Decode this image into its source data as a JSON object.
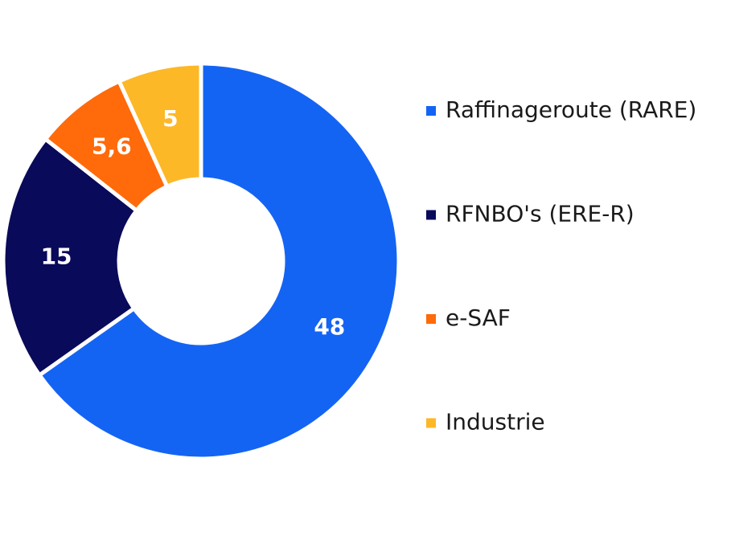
{
  "chart_data": {
    "type": "donut",
    "categories": [
      "Raffinageroute (RARE)",
      "RFNBO's (ERE-R)",
      "e-SAF",
      "Industrie"
    ],
    "values": [
      48,
      15,
      5.6,
      5
    ],
    "value_labels": [
      "48",
      "15",
      "5,6",
      "5"
    ],
    "colors": [
      "#1464f4",
      "#0a0a5a",
      "#ff6a0a",
      "#fdb827"
    ],
    "legend": "right"
  }
}
